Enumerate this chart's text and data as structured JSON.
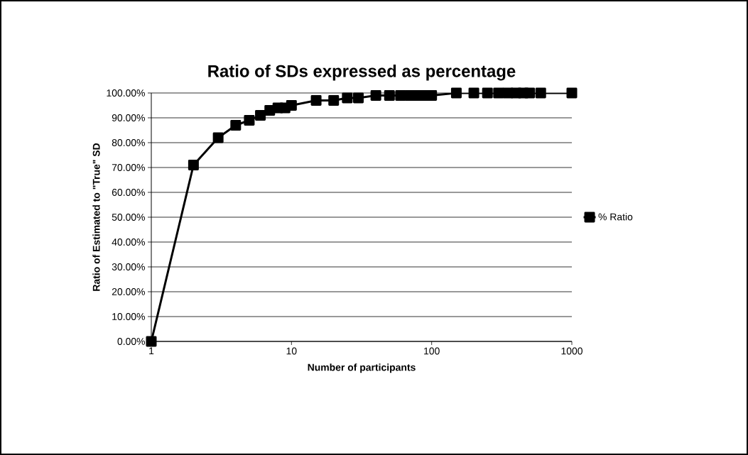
{
  "chart_data": {
    "type": "line",
    "title": "Ratio of SDs expressed as percentage",
    "xlabel": "Number of participants",
    "ylabel": "Ratio of Estimated to \"True\" SD",
    "log": "x",
    "grid": "y",
    "legend": "right",
    "marker": "square",
    "line_style": "solid",
    "xlim": [
      1,
      1000
    ],
    "xticks": [
      1,
      10,
      100,
      1000
    ],
    "ylim": [
      0,
      100
    ],
    "yticks": [
      {
        "value": 0,
        "label": "0.00%"
      },
      {
        "value": 10,
        "label": "10.00%"
      },
      {
        "value": 20,
        "label": "20.00%"
      },
      {
        "value": 30,
        "label": "30.00%"
      },
      {
        "value": 40,
        "label": "40.00%"
      },
      {
        "value": 50,
        "label": "50.00%"
      },
      {
        "value": 60,
        "label": "60.00%"
      },
      {
        "value": 70,
        "label": "70.00%"
      },
      {
        "value": 80,
        "label": "80.00%"
      },
      {
        "value": 90,
        "label": "90.00%"
      },
      {
        "value": 100,
        "label": "100.00%"
      }
    ],
    "series": [
      {
        "name": "% Ratio",
        "color": "#000000",
        "x": [
          1,
          2,
          3,
          4,
          5,
          6,
          7,
          8,
          9,
          10,
          15,
          20,
          25,
          30,
          40,
          50,
          60,
          70,
          80,
          90,
          100,
          150,
          200,
          250,
          300,
          350,
          400,
          450,
          500,
          600,
          1000
        ],
        "values": [
          0,
          71,
          82,
          87,
          89,
          91,
          93,
          94,
          94,
          95,
          97,
          97,
          98,
          98,
          99,
          99,
          99,
          99,
          99,
          99,
          99,
          100,
          100,
          100,
          100,
          100,
          100,
          100,
          100,
          100,
          100
        ]
      }
    ]
  }
}
